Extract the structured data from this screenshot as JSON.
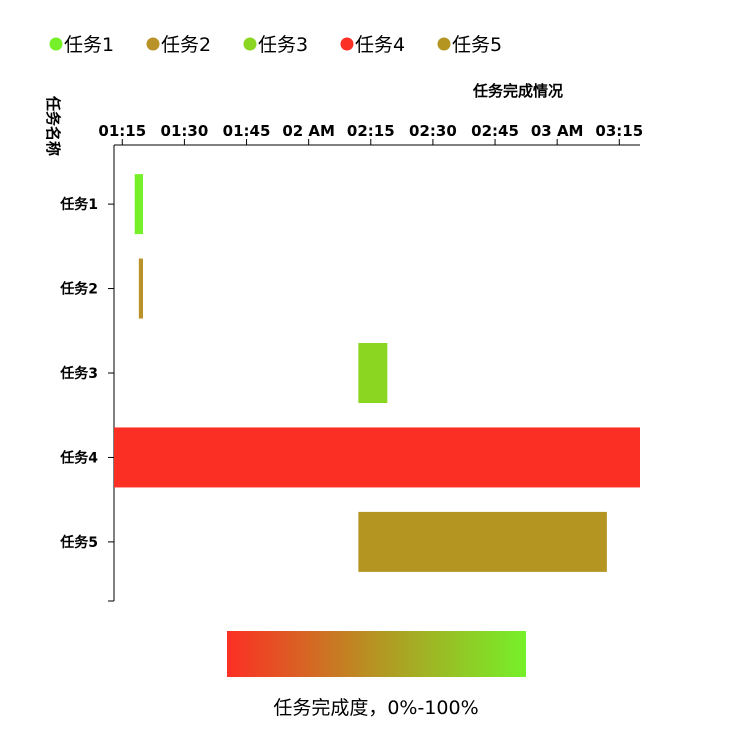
{
  "chart_data": {
    "type": "gantt",
    "title": "任务完成情况",
    "ylabel": "任务名称",
    "x_ticks": [
      "01:15",
      "01:30",
      "01:45",
      "02 AM",
      "02:15",
      "02:30",
      "02:45",
      "03 AM",
      "03:15"
    ],
    "xlim": [
      "01:13",
      "03:20"
    ],
    "legend": [
      {
        "name": "任务1",
        "color": "#76f028"
      },
      {
        "name": "任务2",
        "color": "#b9922a"
      },
      {
        "name": "任务3",
        "color": "#8bd621"
      },
      {
        "name": "任务4",
        "color": "#fc2f25"
      },
      {
        "name": "任务5",
        "color": "#b59522"
      }
    ],
    "tasks": [
      {
        "name": "任务1",
        "start": "01:18",
        "end": "01:20",
        "color": "#76f028"
      },
      {
        "name": "任务2",
        "start": "01:19",
        "end": "01:20",
        "color": "#b9922a"
      },
      {
        "name": "任务3",
        "start": "02:12",
        "end": "02:19",
        "color": "#8bd621"
      },
      {
        "name": "任务4",
        "start": "01:13",
        "end": "03:20",
        "color": "#fc2f25"
      },
      {
        "name": "任务5",
        "start": "02:12",
        "end": "03:12",
        "color": "#b59522"
      }
    ],
    "color_scale": {
      "label": "任务完成度，0%-100%",
      "colors": [
        "#fc2f25",
        "#b59522",
        "#76f028"
      ]
    }
  }
}
